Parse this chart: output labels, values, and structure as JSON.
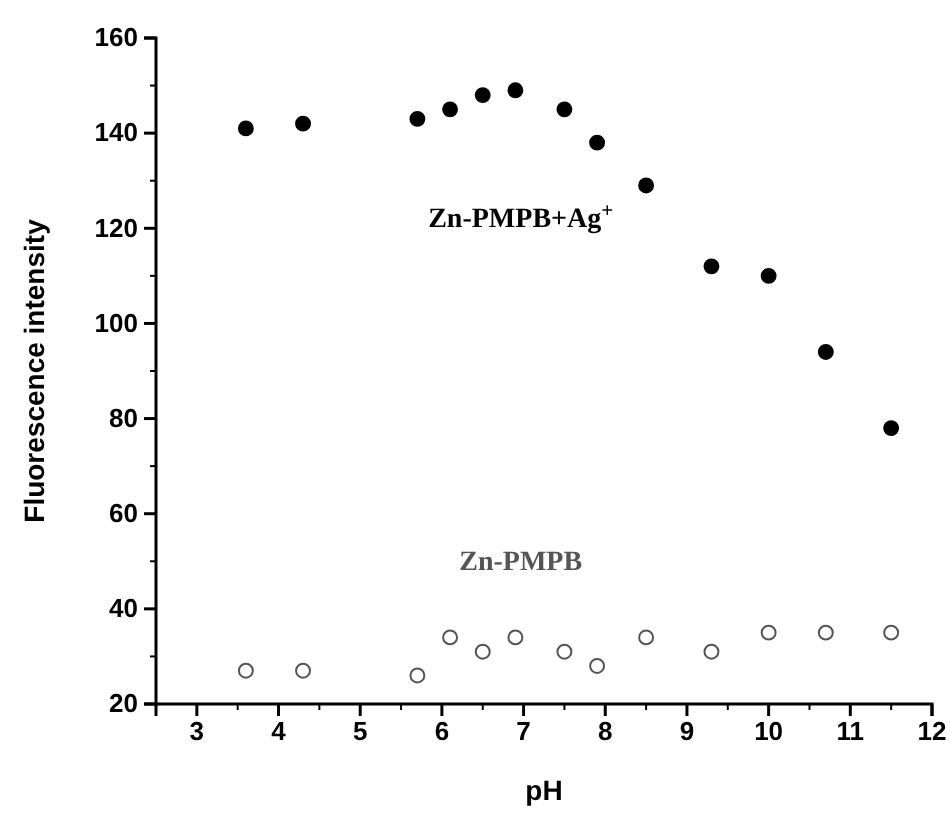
{
  "chart_data": {
    "type": "scatter",
    "xlabel": "pH",
    "ylabel": "Fluorescence intensity",
    "xlim": [
      2.5,
      12
    ],
    "xticks": [
      3,
      4,
      5,
      6,
      7,
      8,
      9,
      10,
      11,
      12
    ],
    "ylim": [
      20,
      160
    ],
    "yticks": [
      20,
      40,
      60,
      80,
      100,
      120,
      140,
      160
    ],
    "grid": false,
    "series": [
      {
        "name": "Zn-PMPB+Ag$^{+}$",
        "color": "#000000",
        "marker": "circle",
        "x": [
          3.6,
          4.3,
          5.7,
          6.1,
          6.5,
          6.9,
          7.5,
          7.9,
          8.5,
          9.3,
          10.0,
          10.7,
          11.5
        ],
        "values": [
          141,
          142,
          143,
          145,
          148,
          149,
          145,
          138,
          129,
          112,
          110,
          94,
          78
        ]
      },
      {
        "name": "Zn-PMPB",
        "color": "#555555",
        "marker": "circle",
        "x": [
          3.6,
          4.3,
          5.7,
          6.1,
          6.5,
          6.9,
          7.5,
          7.9,
          8.5,
          9.3,
          10.0,
          10.7,
          11.5
        ],
        "values": [
          27,
          27,
          26,
          34,
          31,
          34,
          31,
          28,
          34,
          31,
          35,
          35,
          35
        ]
      }
    ]
  }
}
